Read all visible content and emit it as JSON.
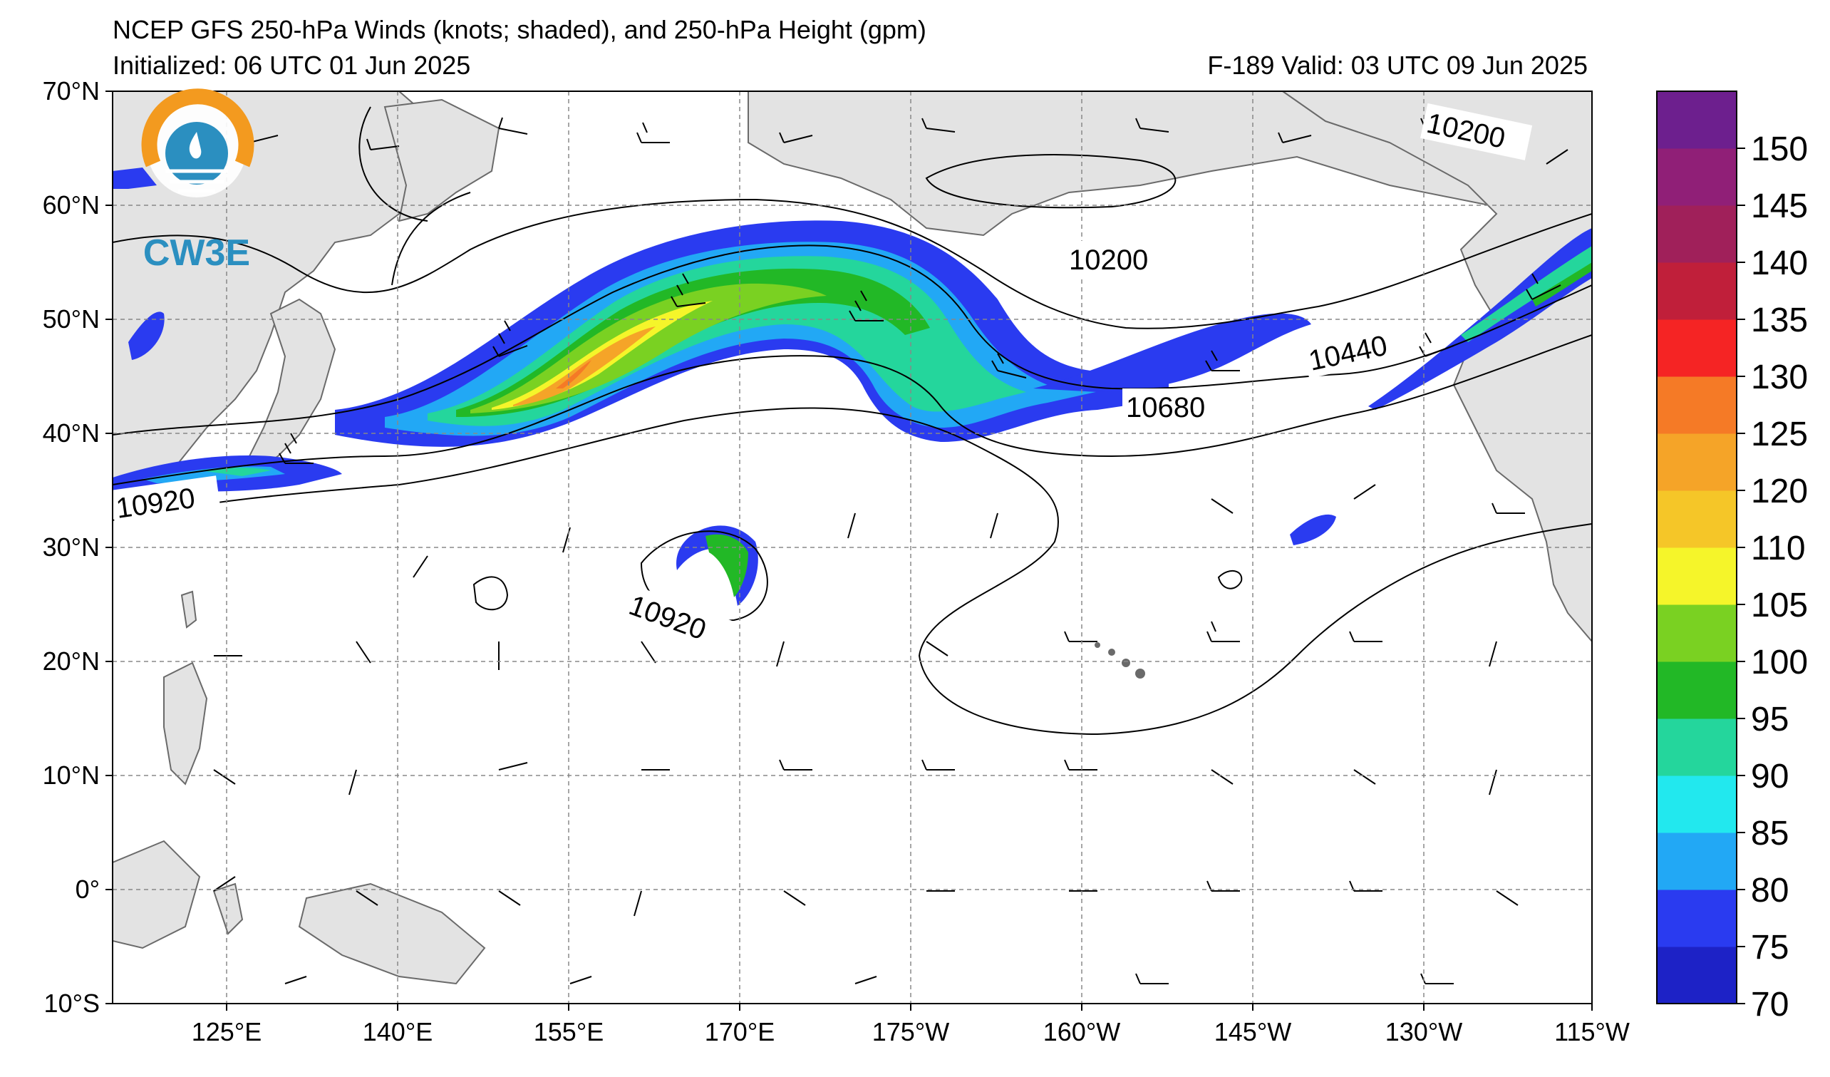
{
  "header": {
    "title": "NCEP GFS 250-hPa Winds (knots; shaded), and 250-hPa Height (gpm)",
    "initialized": "Initialized: 06 UTC 01 Jun 2025",
    "valid": "F-189  Valid: 03 UTC 09 Jun 2025"
  },
  "logo": {
    "text": "CW3E",
    "ring_color": "#f39a1f",
    "accent_color": "#2b8fc0"
  },
  "axes": {
    "lat_labels": [
      "70°N",
      "60°N",
      "50°N",
      "40°N",
      "30°N",
      "20°N",
      "10°N",
      "0°",
      "10°S"
    ],
    "lon_labels": [
      "125°E",
      "140°E",
      "155°E",
      "170°E",
      "175°W",
      "160°W",
      "145°W",
      "130°W",
      "115°W"
    ]
  },
  "contour_labels": [
    "10200",
    "10200",
    "10440",
    "10680",
    "10920",
    "10920"
  ],
  "colorbar": {
    "levels": [
      70,
      75,
      80,
      85,
      90,
      95,
      100,
      105,
      110,
      120,
      125,
      130,
      135,
      140,
      145,
      150
    ],
    "tick_labels": [
      "70",
      "75",
      "80",
      "85",
      "90",
      "95",
      "100",
      "105",
      "110",
      "120",
      "125",
      "130",
      "135",
      "140",
      "145",
      "150"
    ],
    "colors": [
      "#1d22c6",
      "#2a3bf0",
      "#22a8f5",
      "#22e8ee",
      "#24d69c",
      "#22b826",
      "#7ad122",
      "#f5f52a",
      "#f5c628",
      "#f5a428",
      "#f57a26",
      "#f52424",
      "#c01f3a",
      "#a0205a",
      "#901f77",
      "#6d1f8e"
    ]
  }
}
